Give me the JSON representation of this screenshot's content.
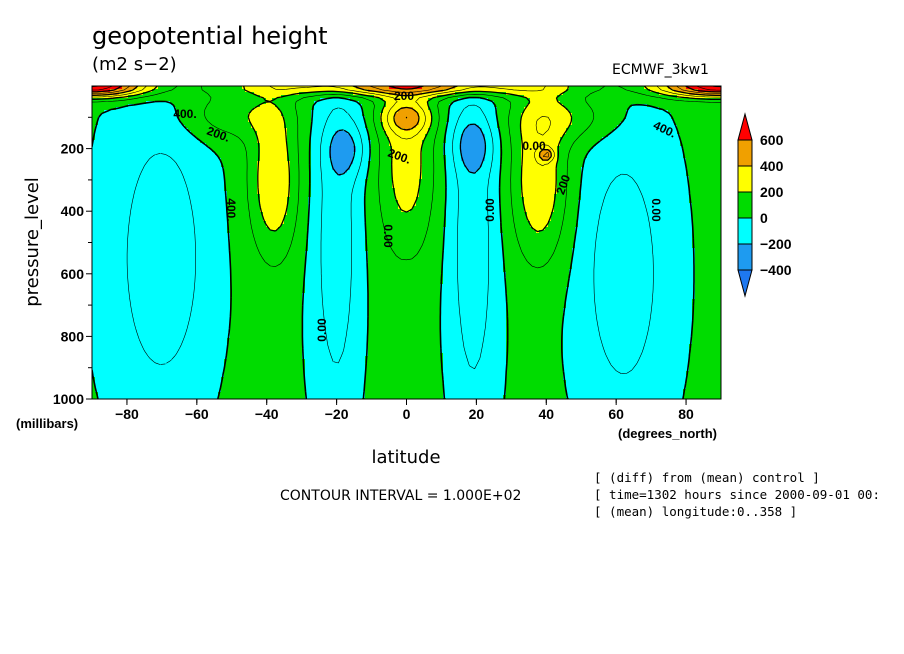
{
  "header": {
    "title": "geopotential height",
    "units": "(m2 s−2)",
    "dataset": "ECMWF_3kw1"
  },
  "footer": {
    "contour_interval": "CONTOUR INTERVAL = 1.000E+02",
    "notes": [
      "[ (diff) from (mean) control ]",
      "[ time=1302 hours since 2000-09-01 00:",
      "[ (mean) longitude:0..358 ]"
    ]
  },
  "chart_data": {
    "type": "heatmap",
    "title": "geopotential height",
    "xlabel": "latitude",
    "x_unit": "(degrees_north)",
    "ylabel": "pressure_level",
    "y_unit": "(millibars)",
    "x_ticks": [
      -80,
      -60,
      -40,
      -20,
      0,
      20,
      40,
      60,
      80
    ],
    "y_ticks": [
      200,
      400,
      600,
      800,
      1000
    ],
    "xlim": [
      -90,
      90
    ],
    "ylim": [
      1000,
      0
    ],
    "colorbar": {
      "levels": [
        -400,
        -200,
        0,
        200,
        400,
        600
      ],
      "labels": [
        "600",
        "400",
        "200",
        "0",
        "−200",
        "−400"
      ],
      "colors": {
        "below_-400": "#1e78f0",
        "-400_-200": "#1e9bf0",
        "-200_0": "#00ffff",
        "0_200": "#00dc00",
        "200_400": "#ffff00",
        "400_600": "#f0a000",
        "above_600": "#ff0000"
      }
    },
    "contour_labels": [
      "400.",
      "200.",
      "200.",
      "200",
      "400.",
      "200",
      "400.",
      "0.00",
      "0.00",
      "0.00",
      "0.00",
      "0.00"
    ],
    "field_model": {
      "basis": [
        [
          -90,
          10
        ],
        [
          -75,
          12
        ],
        [
          -60,
          15
        ],
        [
          -45,
          18
        ],
        [
          -30,
          20
        ],
        [
          -20,
          25
        ],
        [
          -10,
          30
        ],
        [
          0,
          15
        ],
        [
          10,
          25
        ],
        [
          20,
          20
        ],
        [
          30,
          18
        ],
        [
          45,
          15
        ],
        [
          60,
          15
        ],
        [
          75,
          12
        ],
        [
          90,
          10
        ]
      ],
      "components": [
        {
          "lat": -70,
          "p": 550,
          "slat": 13,
          "sp": 450,
          "amp": -200
        },
        {
          "lat": 62,
          "p": 600,
          "slat": 12,
          "sp": 450,
          "amp": -190
        },
        {
          "lat": -20,
          "p": 500,
          "slat": 7,
          "sp": 600,
          "amp": -190
        },
        {
          "lat": 19,
          "p": 500,
          "slat": 7,
          "sp": 600,
          "amp": -190
        },
        {
          "lat": -17,
          "p": 200,
          "slat": 6,
          "sp": 90,
          "amp": -170
        },
        {
          "lat": 19,
          "p": 185,
          "slat": 6,
          "sp": 90,
          "amp": -170
        },
        {
          "lat": 0,
          "p": 250,
          "slat": 8,
          "sp": 300,
          "amp": 240
        },
        {
          "lat": -38,
          "p": 300,
          "slat": 7,
          "sp": 250,
          "amp": 280
        },
        {
          "lat": 38,
          "p": 300,
          "slat": 8,
          "sp": 260,
          "amp": 280
        },
        {
          "lat": 0,
          "p": 100,
          "slat": 7,
          "sp": 55,
          "amp": 300
        },
        {
          "lat": -50,
          "p": 90,
          "slat": 15,
          "sp": 80,
          "amp": 150
        },
        {
          "lat": 45,
          "p": 100,
          "slat": 15,
          "sp": 80,
          "amp": 160
        },
        {
          "lat": -90,
          "p": 0,
          "slat": 16,
          "sp": 35,
          "amp": 800
        },
        {
          "lat": 90,
          "p": 0,
          "slat": 18,
          "sp": 35,
          "amp": 800
        },
        {
          "lat": 0,
          "p": 0,
          "slat": 40,
          "sp": 30,
          "amp": 500
        },
        {
          "lat": 40,
          "p": 220,
          "slat": 2,
          "sp": 20,
          "amp": 300
        }
      ]
    }
  }
}
